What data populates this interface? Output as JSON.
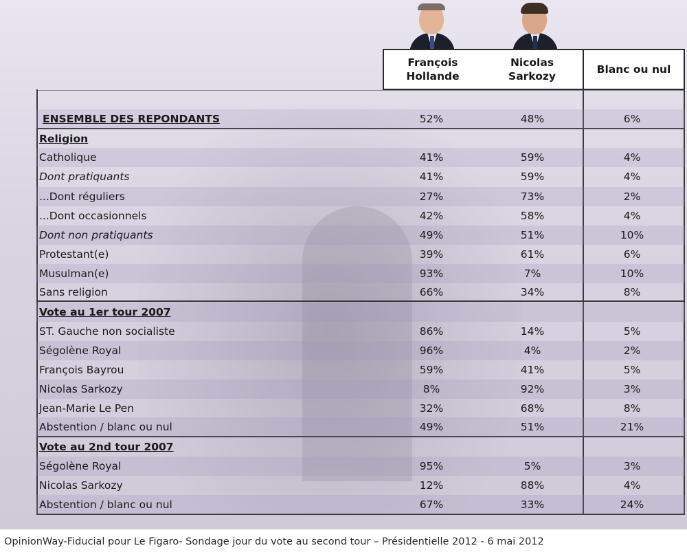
{
  "chart_data": {
    "type": "table",
    "columns": [
      {
        "label_line1": "François",
        "label_line2": "Hollande"
      },
      {
        "label_line1": "Nicolas",
        "label_line2": "Sarkozy"
      },
      {
        "label_line1": "Blanc ou nul",
        "label_line2": ""
      }
    ],
    "rows": [
      {
        "label": "ENSEMBLE DES REPONDANTS",
        "kind": "total",
        "values": [
          "52%",
          "48%",
          "6%"
        ]
      },
      {
        "label": "Religion",
        "kind": "section",
        "values": [
          "",
          "",
          ""
        ]
      },
      {
        "label": "Catholique",
        "kind": "normal",
        "values": [
          "41%",
          "59%",
          "4%"
        ]
      },
      {
        "label": "Dont pratiquants",
        "kind": "italic",
        "values": [
          "41%",
          "59%",
          "4%"
        ]
      },
      {
        "label": "...Dont réguliers",
        "kind": "normal",
        "values": [
          "27%",
          "73%",
          "2%"
        ]
      },
      {
        "label": "...Dont occasionnels",
        "kind": "normal",
        "values": [
          "42%",
          "58%",
          "4%"
        ]
      },
      {
        "label": "Dont non pratiquants",
        "kind": "italic",
        "values": [
          "49%",
          "51%",
          "10%"
        ]
      },
      {
        "label": "Protestant(e)",
        "kind": "normal",
        "values": [
          "39%",
          "61%",
          "6%"
        ]
      },
      {
        "label": "Musulman(e)",
        "kind": "normal",
        "values": [
          "93%",
          "7%",
          "10%"
        ]
      },
      {
        "label": "Sans religion",
        "kind": "normal",
        "values": [
          "66%",
          "34%",
          "8%"
        ]
      },
      {
        "label": "Vote au 1er tour 2007",
        "kind": "section",
        "values": [
          "",
          "",
          ""
        ]
      },
      {
        "label": "ST. Gauche non socialiste",
        "kind": "normal",
        "values": [
          "86%",
          "14%",
          "5%"
        ]
      },
      {
        "label": "Ségolène Royal",
        "kind": "normal",
        "values": [
          "96%",
          "4%",
          "2%"
        ]
      },
      {
        "label": "François Bayrou",
        "kind": "normal",
        "values": [
          "59%",
          "41%",
          "5%"
        ]
      },
      {
        "label": "Nicolas Sarkozy",
        "kind": "normal",
        "values": [
          "8%",
          "92%",
          "3%"
        ]
      },
      {
        "label": "Jean-Marie Le Pen",
        "kind": "normal",
        "values": [
          "32%",
          "68%",
          "8%"
        ]
      },
      {
        "label": "Abstention / blanc ou nul",
        "kind": "normal",
        "values": [
          "49%",
          "51%",
          "21%"
        ]
      },
      {
        "label": "Vote au 2nd tour 2007",
        "kind": "section",
        "values": [
          "",
          "",
          ""
        ]
      },
      {
        "label": "Ségolène Royal",
        "kind": "normal",
        "values": [
          "95%",
          "5%",
          "3%"
        ]
      },
      {
        "label": "Nicolas Sarkozy",
        "kind": "normal",
        "values": [
          "12%",
          "88%",
          "4%"
        ]
      },
      {
        "label": "Abstention / blanc ou nul",
        "kind": "normal",
        "values": [
          "67%",
          "33%",
          "24%"
        ]
      }
    ]
  },
  "source": "OpinionWay-Fiducial pour Le Figaro- Sondage jour du vote au second tour – Présidentielle 2012 - 6 mai 2012",
  "colors": {
    "panel": "#dcd8e4",
    "row_tint": "#c9bfd8",
    "border": "#2a2a2a"
  },
  "icons": {
    "candidate_1": "portrait-hollande-icon",
    "candidate_2": "portrait-sarkozy-icon"
  }
}
